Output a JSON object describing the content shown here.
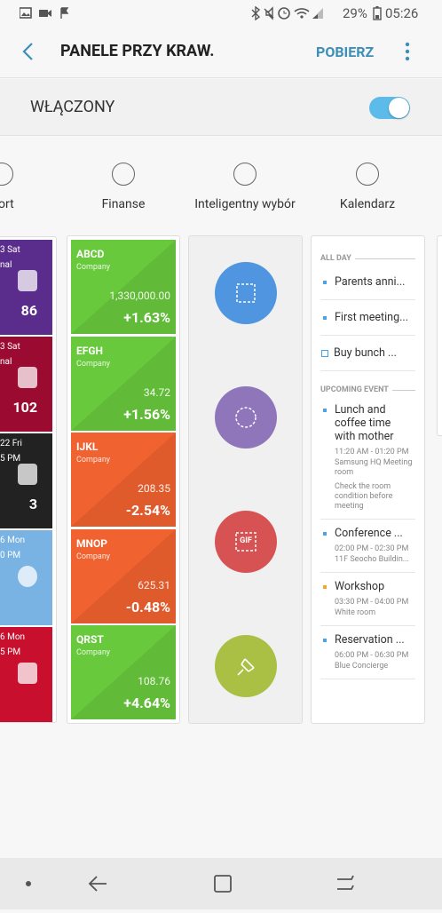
{
  "status_bar": {
    "battery": "29%",
    "time": "05:26"
  },
  "app_bar": {
    "title": "PANELE PRZY KRAW.",
    "action": "POBIERZ"
  },
  "toggle": {
    "label": "WŁĄCZONY",
    "on": true
  },
  "panels": [
    {
      "label": "ort",
      "selected": false
    },
    {
      "label": "Finanse",
      "selected": false
    },
    {
      "label": "Inteligentny wybór",
      "selected": false
    },
    {
      "label": "Kalendarz",
      "selected": false
    }
  ],
  "sport": [
    {
      "date": "3 Sat",
      "status": "nal",
      "score": 86,
      "color": "#5a2d8c"
    },
    {
      "date": "3 Sat",
      "status": "nal",
      "score": 102,
      "color": "#9b0b31"
    },
    {
      "date": "22 Fri",
      "status": "5 PM",
      "score": 3,
      "color": "#222222"
    },
    {
      "date": "6 Mon",
      "status": "0 PM",
      "score": null,
      "color": "#78b3e3"
    },
    {
      "date": "6 Mon",
      "status": "5 PM",
      "score": null,
      "color": "#c8102e"
    }
  ],
  "finance": [
    {
      "name": "ABCD",
      "sub": "Company",
      "price": "1,330,000.00",
      "change": "+1.63%",
      "color": "#69c93c"
    },
    {
      "name": "EFGH",
      "sub": "Company",
      "price": "34.72",
      "change": "+1.56%",
      "color": "#69c93c"
    },
    {
      "name": "IJKL",
      "sub": "Company",
      "price": "208.35",
      "change": "-2.54%",
      "color": "#f0622f"
    },
    {
      "name": "MNOP",
      "sub": "Company",
      "price": "625.31",
      "change": "-0.48%",
      "color": "#f0622f"
    },
    {
      "name": "QRST",
      "sub": "Company",
      "price": "108.76",
      "change": "+4.64%",
      "color": "#69c93c"
    }
  ],
  "smart_select": {
    "colors": [
      "#4f95e0",
      "#8f76bb",
      "#d75353",
      "#a9c044"
    ],
    "gif": "GIF"
  },
  "calendar": {
    "all_day_header": "ALL DAY",
    "all_day": [
      {
        "text": "Parents anni...",
        "color": "#4aa3e6"
      },
      {
        "text": "First meeting...",
        "color": "#4aa3e6"
      }
    ],
    "tasks": [
      "Buy bunch ..."
    ],
    "upcoming_header": "UPCOMING EVENT",
    "upcoming": [
      {
        "title": [
          "Lunch and",
          "coffee time",
          "with mother"
        ],
        "time": "11:20 AM - 01:20 PM",
        "location": [
          "Samsung HQ Meeting",
          "room"
        ],
        "note": [
          "Check the room",
          "condition before",
          "meeting"
        ],
        "color": "#4aa3e6"
      },
      {
        "title": [
          "Conference ..."
        ],
        "time": "02:00 PM - 02:30 PM",
        "location": [
          "11F Seocho Buildin..."
        ],
        "note": [],
        "color": "#4aa3e6"
      },
      {
        "title": [
          "Workshop"
        ],
        "time": "03:30 PM - 04:00 PM",
        "location": [
          "White room"
        ],
        "note": [],
        "color": "#f5a623"
      },
      {
        "title": [
          "Reservation ..."
        ],
        "time": "06:00 PM - 06:30 PM",
        "location": [
          "Blue Concierge"
        ],
        "note": [],
        "color": "#4aa3e6"
      }
    ]
  }
}
